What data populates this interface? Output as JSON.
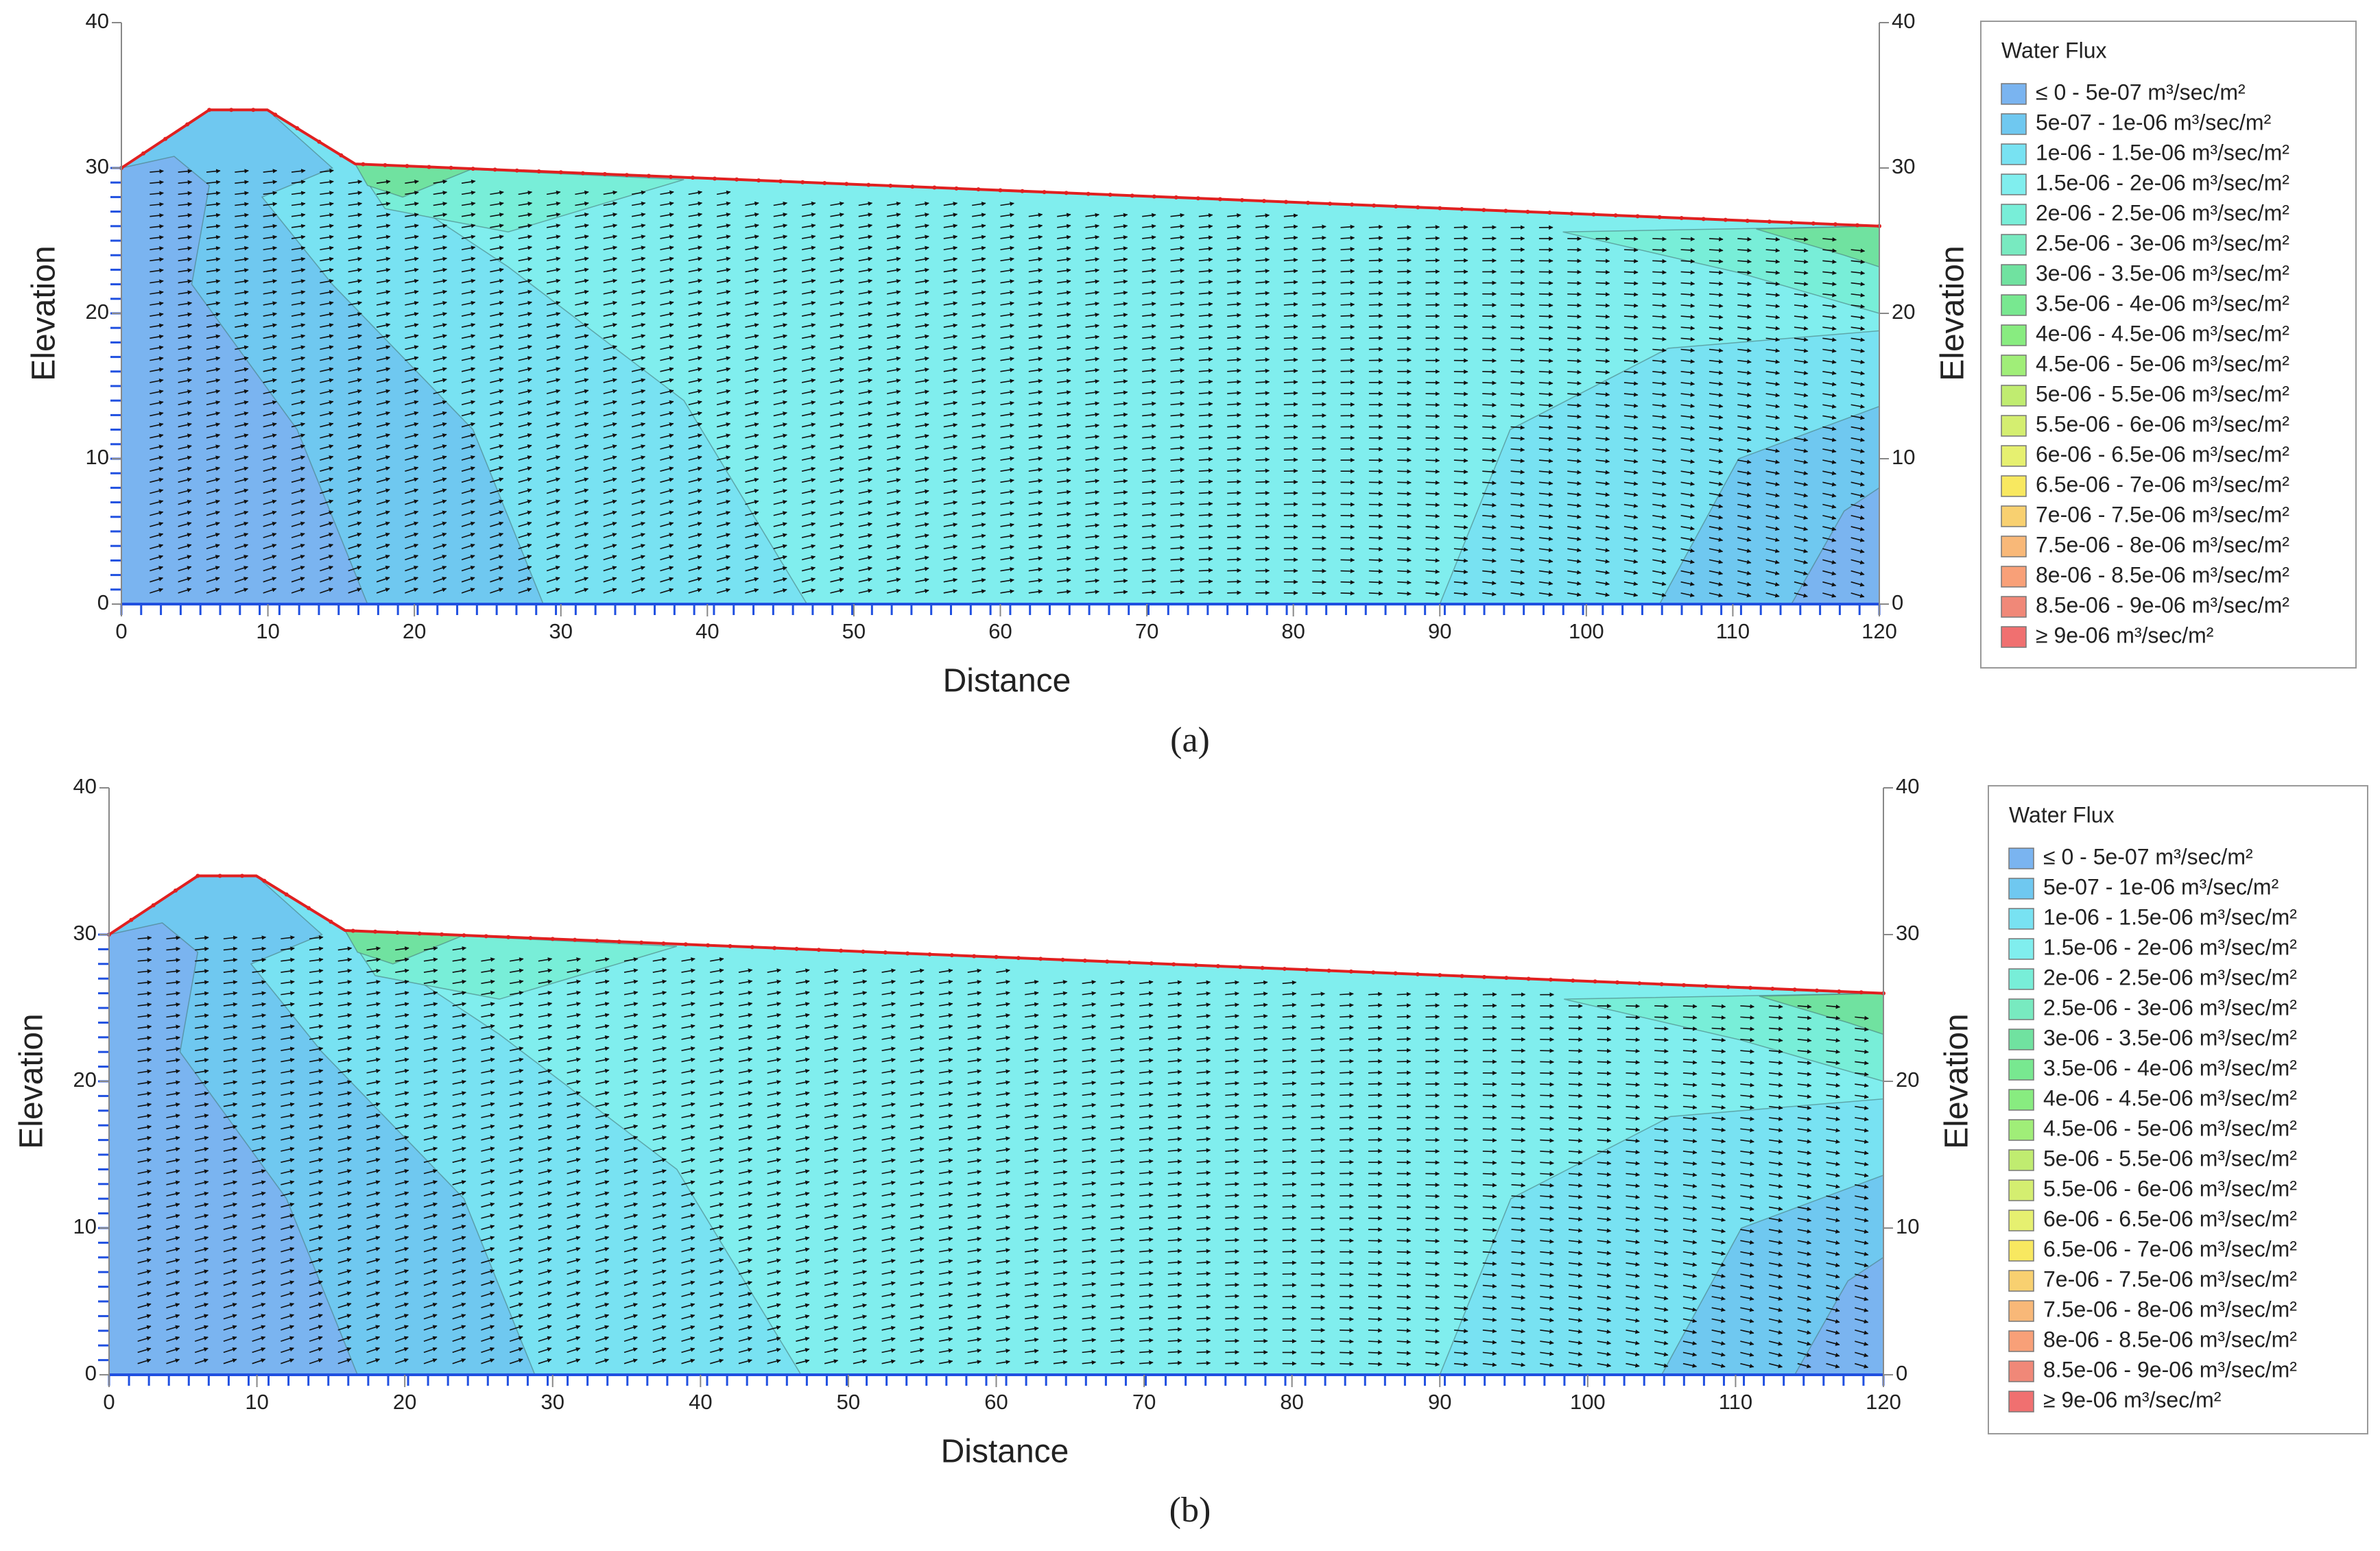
{
  "chart_data": [
    {
      "type": "contour",
      "xlabel": "Distance",
      "ylabel": "Elevation",
      "caption": "(a)",
      "xlim": [
        0,
        120
      ],
      "ylim": [
        0,
        40
      ],
      "xticks": [
        0,
        10,
        20,
        30,
        40,
        50,
        60,
        70,
        80,
        90,
        100,
        110,
        120
      ],
      "yticks": [
        0,
        10,
        20,
        30,
        40
      ],
      "legend_title": "Water Flux",
      "legend_entries": [
        {
          "label": "≤ 0 - 5e-07 m³/sec/m²",
          "color": "#7ab4f0"
        },
        {
          "label": "5e-07 - 1e-06 m³/sec/m²",
          "color": "#6fc8f0"
        },
        {
          "label": "1e-06 - 1.5e-06 m³/sec/m²",
          "color": "#78e2f2"
        },
        {
          "label": "1.5e-06 - 2e-06 m³/sec/m²",
          "color": "#80eeee"
        },
        {
          "label": "2e-06 - 2.5e-06 m³/sec/m²",
          "color": "#78eed8"
        },
        {
          "label": "2.5e-06 - 3e-06 m³/sec/m²",
          "color": "#78eac0"
        },
        {
          "label": "3e-06 - 3.5e-06 m³/sec/m²",
          "color": "#70e2a0"
        },
        {
          "label": "3.5e-06 - 4e-06 m³/sec/m²",
          "color": "#78e890"
        },
        {
          "label": "4e-06 - 4.5e-06 m³/sec/m²",
          "color": "#88ec80"
        },
        {
          "label": "4.5e-06 - 5e-06 m³/sec/m²",
          "color": "#a0ee78"
        },
        {
          "label": "5e-06 - 5.5e-06 m³/sec/m²",
          "color": "#c0ec70"
        },
        {
          "label": "5.5e-06 - 6e-06 m³/sec/m²",
          "color": "#d4ee70"
        },
        {
          "label": "6e-06 - 6.5e-06 m³/sec/m²",
          "color": "#e6f070"
        },
        {
          "label": "6.5e-06 - 7e-06 m³/sec/m²",
          "color": "#f8e860"
        },
        {
          "label": "7e-06 - 7.5e-06 m³/sec/m²",
          "color": "#f8d070"
        },
        {
          "label": "7.5e-06 - 8e-06 m³/sec/m²",
          "color": "#f8b878"
        },
        {
          "label": "8e-06 - 8.5e-06 m³/sec/m²",
          "color": "#f8a078"
        },
        {
          "label": "8.5e-06 - 9e-06 m³/sec/m²",
          "color": "#f08878"
        },
        {
          "label": "≥ 9e-06 m³/sec/m²",
          "color": "#f07070"
        }
      ]
    },
    {
      "type": "contour",
      "xlabel": "Distance",
      "ylabel": "Elevation",
      "caption": "(b)",
      "xlim": [
        0,
        120
      ],
      "ylim": [
        0,
        40
      ],
      "xticks": [
        0,
        10,
        20,
        30,
        40,
        50,
        60,
        70,
        80,
        90,
        100,
        110,
        120
      ],
      "yticks": [
        0,
        10,
        20,
        30,
        40
      ],
      "legend_title": "Water Flux",
      "legend_entries": [
        {
          "label": "≤ 0 - 5e-07 m³/sec/m²",
          "color": "#7ab4f0"
        },
        {
          "label": "5e-07 - 1e-06 m³/sec/m²",
          "color": "#6fc8f0"
        },
        {
          "label": "1e-06 - 1.5e-06 m³/sec/m²",
          "color": "#78e2f2"
        },
        {
          "label": "1.5e-06 - 2e-06 m³/sec/m²",
          "color": "#80eeee"
        },
        {
          "label": "2e-06 - 2.5e-06 m³/sec/m²",
          "color": "#78eed8"
        },
        {
          "label": "2.5e-06 - 3e-06 m³/sec/m²",
          "color": "#78eac0"
        },
        {
          "label": "3e-06 - 3.5e-06 m³/sec/m²",
          "color": "#70e2a0"
        },
        {
          "label": "3.5e-06 - 4e-06 m³/sec/m²",
          "color": "#78e890"
        },
        {
          "label": "4e-06 - 4.5e-06 m³/sec/m²",
          "color": "#88ec80"
        },
        {
          "label": "4.5e-06 - 5e-06 m³/sec/m²",
          "color": "#a0ee78"
        },
        {
          "label": "5e-06 - 5.5e-06 m³/sec/m²",
          "color": "#c0ec70"
        },
        {
          "label": "5.5e-06 - 6e-06 m³/sec/m²",
          "color": "#d4ee70"
        },
        {
          "label": "6e-06 - 6.5e-06 m³/sec/m²",
          "color": "#e6f070"
        },
        {
          "label": "6.5e-06 - 7e-06 m³/sec/m²",
          "color": "#f8e860"
        },
        {
          "label": "7e-06 - 7.5e-06 m³/sec/m²",
          "color": "#f8d070"
        },
        {
          "label": "7.5e-06 - 8e-06 m³/sec/m²",
          "color": "#f8b878"
        },
        {
          "label": "8e-06 - 8.5e-06 m³/sec/m²",
          "color": "#f8a078"
        },
        {
          "label": "8.5e-06 - 9e-06 m³/sec/m²",
          "color": "#f08878"
        },
        {
          "label": "≥ 9e-06 m³/sec/m²",
          "color": "#f07070"
        }
      ]
    }
  ]
}
